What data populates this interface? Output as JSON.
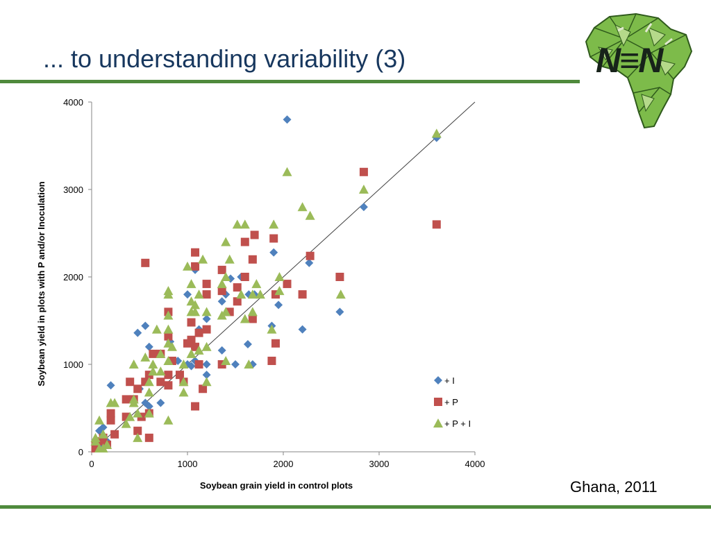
{
  "slide": {
    "title": "... to understanding variability (3)",
    "footnote": "Ghana, 2011",
    "logo_text": "N≡N",
    "colors": {
      "title": "#17375e",
      "rule": "#4f8a3c"
    }
  },
  "chart_data": {
    "type": "scatter",
    "title": "",
    "xlabel": "Soybean grain yield in control plots",
    "ylabel": "Soybean yield in plots with P and/or Inoculation",
    "xlim": [
      0,
      4000
    ],
    "ylim": [
      0,
      4000
    ],
    "xticks": [
      0,
      1000,
      2000,
      3000,
      4000
    ],
    "yticks": [
      0,
      1000,
      2000,
      3000,
      4000
    ],
    "xtick_labels": [
      "0",
      "1000",
      "2000",
      "3000",
      "4000"
    ],
    "ytick_labels": [
      "0",
      "1000",
      "2000",
      "3000",
      "4000"
    ],
    "grid": false,
    "legend_position": "lower-right",
    "reference_line": {
      "from": [
        0,
        0
      ],
      "to": [
        4000,
        4000
      ],
      "color": "#404040"
    },
    "series": [
      {
        "name": "+ I",
        "marker": "diamond",
        "color": "#4f81bd",
        "points": [
          [
            2040,
            3800
          ],
          [
            2840,
            2800
          ],
          [
            3600,
            3590
          ],
          [
            2270,
            2160
          ],
          [
            1900,
            2280
          ],
          [
            1560,
            2000
          ],
          [
            1360,
            1720
          ],
          [
            1400,
            1800
          ],
          [
            1450,
            1980
          ],
          [
            1640,
            1800
          ],
          [
            1700,
            1800
          ],
          [
            1950,
            1680
          ],
          [
            1880,
            1440
          ],
          [
            2200,
            1400
          ],
          [
            2590,
            1600
          ],
          [
            1630,
            1230
          ],
          [
            1360,
            1160
          ],
          [
            1500,
            1000
          ],
          [
            1680,
            1000
          ],
          [
            1200,
            1000
          ],
          [
            1200,
            880
          ],
          [
            1080,
            2080
          ],
          [
            1120,
            1400
          ],
          [
            1200,
            1520
          ],
          [
            1000,
            1800
          ],
          [
            1000,
            1000
          ],
          [
            1040,
            980
          ],
          [
            1080,
            1040
          ],
          [
            900,
            1040
          ],
          [
            820,
            1260
          ],
          [
            560,
            1440
          ],
          [
            480,
            1360
          ],
          [
            600,
            1200
          ],
          [
            720,
            560
          ],
          [
            600,
            520
          ],
          [
            560,
            560
          ],
          [
            500,
            720
          ],
          [
            200,
            760
          ],
          [
            120,
            280
          ],
          [
            80,
            240
          ],
          [
            160,
            120
          ],
          [
            40,
            80
          ],
          [
            100,
            40
          ]
        ]
      },
      {
        "name": "+ P",
        "marker": "square",
        "color": "#c0504d",
        "points": [
          [
            2840,
            3200
          ],
          [
            3600,
            2600
          ],
          [
            1700,
            2480
          ],
          [
            1900,
            2440
          ],
          [
            1600,
            2400
          ],
          [
            2280,
            2240
          ],
          [
            1680,
            2200
          ],
          [
            1080,
            2280
          ],
          [
            1080,
            2120
          ],
          [
            560,
            2160
          ],
          [
            1360,
            2080
          ],
          [
            1600,
            2000
          ],
          [
            1200,
            1920
          ],
          [
            2040,
            1920
          ],
          [
            2590,
            2000
          ],
          [
            1520,
            1880
          ],
          [
            1360,
            1840
          ],
          [
            2200,
            1800
          ],
          [
            1920,
            1800
          ],
          [
            1520,
            1720
          ],
          [
            1440,
            1600
          ],
          [
            1200,
            1800
          ],
          [
            800,
            1600
          ],
          [
            1040,
            1480
          ],
          [
            1200,
            1400
          ],
          [
            1120,
            1360
          ],
          [
            800,
            1320
          ],
          [
            1680,
            1520
          ],
          [
            1920,
            1240
          ],
          [
            1880,
            1040
          ],
          [
            1360,
            1000
          ],
          [
            1040,
            1280
          ],
          [
            1000,
            1240
          ],
          [
            1080,
            1200
          ],
          [
            1120,
            1000
          ],
          [
            960,
            800
          ],
          [
            1160,
            720
          ],
          [
            1080,
            520
          ],
          [
            920,
            880
          ],
          [
            800,
            880
          ],
          [
            720,
            800
          ],
          [
            800,
            760
          ],
          [
            640,
            1120
          ],
          [
            720,
            1120
          ],
          [
            840,
            1040
          ],
          [
            600,
            880
          ],
          [
            560,
            800
          ],
          [
            480,
            720
          ],
          [
            400,
            800
          ],
          [
            440,
            600
          ],
          [
            360,
            600
          ],
          [
            520,
            400
          ],
          [
            600,
            440
          ],
          [
            480,
            240
          ],
          [
            600,
            160
          ],
          [
            200,
            360
          ],
          [
            200,
            440
          ],
          [
            360,
            400
          ],
          [
            240,
            200
          ],
          [
            120,
            160
          ],
          [
            80,
            120
          ],
          [
            40,
            80
          ],
          [
            160,
            80
          ],
          [
            40,
            40
          ]
        ]
      },
      {
        "name": "+ P + I",
        "marker": "triangle",
        "color": "#9bbb59",
        "points": [
          [
            3600,
            3640
          ],
          [
            2040,
            3200
          ],
          [
            2840,
            3000
          ],
          [
            2200,
            2800
          ],
          [
            2280,
            2700
          ],
          [
            1520,
            2600
          ],
          [
            1600,
            2600
          ],
          [
            1900,
            2600
          ],
          [
            1400,
            2400
          ],
          [
            1440,
            2200
          ],
          [
            1000,
            2120
          ],
          [
            1160,
            2200
          ],
          [
            1400,
            2000
          ],
          [
            1960,
            2000
          ],
          [
            1720,
            1920
          ],
          [
            1040,
            1920
          ],
          [
            800,
            1840
          ],
          [
            1360,
            1920
          ],
          [
            1760,
            1800
          ],
          [
            1560,
            1800
          ],
          [
            1680,
            1800
          ],
          [
            1960,
            1840
          ],
          [
            2600,
            1800
          ],
          [
            1120,
            1800
          ],
          [
            800,
            1800
          ],
          [
            1200,
            1600
          ],
          [
            1040,
            1720
          ],
          [
            1080,
            1680
          ],
          [
            1400,
            1600
          ],
          [
            1600,
            1520
          ],
          [
            1680,
            1600
          ],
          [
            1360,
            1560
          ],
          [
            800,
            1560
          ],
          [
            1880,
            1400
          ],
          [
            1040,
            1600
          ],
          [
            1080,
            1600
          ],
          [
            1200,
            1200
          ],
          [
            1120,
            1160
          ],
          [
            1400,
            1040
          ],
          [
            1640,
            1000
          ],
          [
            1040,
            1120
          ],
          [
            960,
            1000
          ],
          [
            800,
            1400
          ],
          [
            800,
            1240
          ],
          [
            840,
            1200
          ],
          [
            720,
            1120
          ],
          [
            640,
            1000
          ],
          [
            560,
            1080
          ],
          [
            680,
            1400
          ],
          [
            440,
            1000
          ],
          [
            960,
            800
          ],
          [
            960,
            680
          ],
          [
            1200,
            800
          ],
          [
            800,
            1040
          ],
          [
            600,
            800
          ],
          [
            640,
            920
          ],
          [
            720,
            920
          ],
          [
            600,
            680
          ],
          [
            600,
            440
          ],
          [
            480,
            440
          ],
          [
            440,
            600
          ],
          [
            440,
            560
          ],
          [
            400,
            400
          ],
          [
            360,
            320
          ],
          [
            480,
            160
          ],
          [
            800,
            360
          ],
          [
            200,
            560
          ],
          [
            240,
            560
          ],
          [
            80,
            360
          ],
          [
            120,
            200
          ],
          [
            40,
            160
          ],
          [
            160,
            80
          ],
          [
            80,
            40
          ],
          [
            40,
            120
          ],
          [
            120,
            40
          ]
        ]
      }
    ]
  }
}
